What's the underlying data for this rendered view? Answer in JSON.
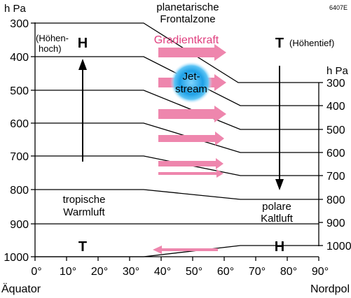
{
  "code": "6407E",
  "left_axis": {
    "unit": "h Pa",
    "ticks": [
      "300",
      "400",
      "500",
      "600",
      "700",
      "800",
      "900",
      "1000"
    ]
  },
  "right_axis": {
    "unit": "h Pa",
    "ticks": [
      "300",
      "400",
      "500",
      "600",
      "700",
      "800",
      "900",
      "1000"
    ]
  },
  "x_axis": {
    "ticks": [
      "0°",
      "10°",
      "20°",
      "30°",
      "40°",
      "50°",
      "60°",
      "70°",
      "80°",
      "90°"
    ],
    "left_label": "Äquator",
    "right_label": "Nordpol"
  },
  "labels": {
    "frontal_zone_line1": "planetarische",
    "frontal_zone_line2": "Frontalzone",
    "gradient_force": "Gradientkraft",
    "jet_line1": "Jet-",
    "jet_line2": "stream",
    "high_aloft_symbol": "H",
    "high_aloft_line1": "(Höhen-",
    "high_aloft_line2": "hoch)",
    "low_aloft_symbol": "T",
    "low_aloft_text": "(Höhentief)",
    "tropical_line1": "tropische",
    "tropical_line2": "Warmluft",
    "polar_line1": "polare",
    "polar_line2": "Kaltluft",
    "surface_low_symbol": "T",
    "surface_high_symbol": "H"
  },
  "colors": {
    "arrow_pink": "#ee86ad",
    "gradient_text": "#e0407f",
    "jet_blue": "#1ea0e6",
    "line": "#000000"
  }
}
